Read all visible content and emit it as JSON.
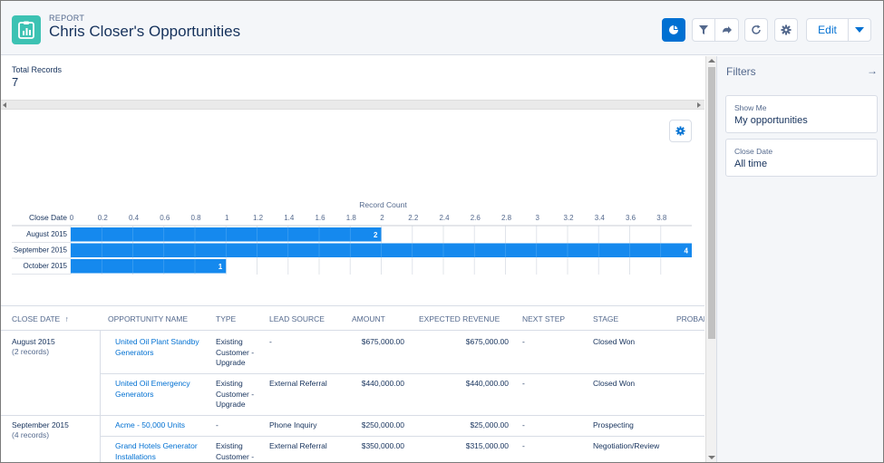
{
  "header": {
    "eyebrow": "REPORT",
    "title": "Chris Closer's Opportunities",
    "edit_label": "Edit"
  },
  "summary": {
    "label": "Total Records",
    "value": "7"
  },
  "chart_data": {
    "type": "bar",
    "orientation": "horizontal",
    "xlabel": "Record Count",
    "ylabel": "Close Date",
    "categories": [
      "August 2015",
      "September 2015",
      "October 2015"
    ],
    "values": [
      2,
      4,
      1
    ],
    "xlim": [
      0,
      4
    ],
    "ticks": [
      "0",
      "0.2",
      "0.4",
      "0.6",
      "0.8",
      "1",
      "1.2",
      "1.4",
      "1.6",
      "1.8",
      "2",
      "2.2",
      "2.4",
      "2.6",
      "2.8",
      "3",
      "3.2",
      "3.4",
      "3.6",
      "3.8"
    ],
    "bar_color": "#1589ee",
    "grid": true
  },
  "table": {
    "columns": [
      "CLOSE DATE",
      "OPPORTUNITY NAME",
      "TYPE",
      "LEAD SOURCE",
      "AMOUNT",
      "EXPECTED REVENUE",
      "NEXT STEP",
      "STAGE",
      "PROBABI"
    ],
    "sort_icon": "↑",
    "groups": [
      {
        "label": "August 2015",
        "count": "(2 records)",
        "rows": [
          {
            "name": "United Oil Plant Standby Generators",
            "type": "Existing Customer - Upgrade",
            "source": "-",
            "amount": "$675,000.00",
            "revenue": "$675,000.00",
            "next": "-",
            "stage": "Closed Won"
          },
          {
            "name": "United Oil Emergency Generators",
            "type": "Existing Customer - Upgrade",
            "source": "External Referral",
            "amount": "$440,000.00",
            "revenue": "$440,000.00",
            "next": "-",
            "stage": "Closed Won"
          }
        ]
      },
      {
        "label": "September 2015",
        "count": "(4 records)",
        "rows": [
          {
            "name": "Acme - 50,000 Units",
            "type": "-",
            "source": "Phone Inquiry",
            "amount": "$250,000.00",
            "revenue": "$25,000.00",
            "next": "-",
            "stage": "Prospecting"
          },
          {
            "name": "Grand Hotels Generator Installations",
            "type": "Existing Customer -",
            "source": "External Referral",
            "amount": "$350,000.00",
            "revenue": "$315,000.00",
            "next": "-",
            "stage": "Negotiation/Review"
          }
        ]
      }
    ]
  },
  "filters": {
    "title": "Filters",
    "items": [
      {
        "label": "Show Me",
        "value": "My opportunities"
      },
      {
        "label": "Close Date",
        "value": "All time"
      }
    ]
  },
  "colors": {
    "brand": "#0070d2",
    "app_icon": "#3cc2b3",
    "bar": "#1589ee"
  }
}
